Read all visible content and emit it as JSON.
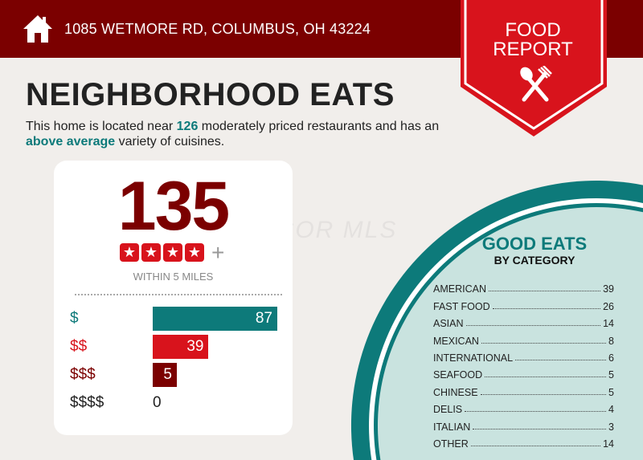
{
  "header": {
    "address": "1085 WETMORE RD, COLUMBUS, OH 43224",
    "icon": "house-icon",
    "bg_color": "#7b0000"
  },
  "banner": {
    "line1": "FOOD",
    "line2": "REPORT",
    "icon": "spoon-fork-icon",
    "color": "#d8131c"
  },
  "title": "NEIGHBORHOOD EATS",
  "description": {
    "pre": "This home is located near ",
    "count": "126",
    "mid": " moderately priced restaurants and has an ",
    "variety": "above average",
    "post": " variety of cuisines."
  },
  "watermark": "CCOR MLS",
  "summary": {
    "total": "135",
    "rating_stars": 4,
    "rating_suffix": "+",
    "radius_label": "WITHIN 5 MILES"
  },
  "chart_data": {
    "type": "bar",
    "orientation": "horizontal",
    "categories": [
      "$",
      "$$",
      "$$$",
      "$$$$"
    ],
    "values": [
      87,
      39,
      5,
      0
    ],
    "colors": [
      "#0d7a7a",
      "#d8131c",
      "#7b0000",
      "#222222"
    ]
  },
  "categories_panel": {
    "title": "GOOD EATS",
    "subtitle": "BY CATEGORY",
    "items": [
      {
        "name": "AMERICAN",
        "count": "39"
      },
      {
        "name": "FAST FOOD",
        "count": "26"
      },
      {
        "name": "ASIAN",
        "count": "14"
      },
      {
        "name": "MEXICAN",
        "count": "8"
      },
      {
        "name": "INTERNATIONAL",
        "count": "6"
      },
      {
        "name": "SEAFOOD",
        "count": "5"
      },
      {
        "name": "CHINESE",
        "count": "5"
      },
      {
        "name": "DELIS",
        "count": "4"
      },
      {
        "name": "ITALIAN",
        "count": "3"
      },
      {
        "name": "OTHER",
        "count": "14"
      }
    ]
  }
}
